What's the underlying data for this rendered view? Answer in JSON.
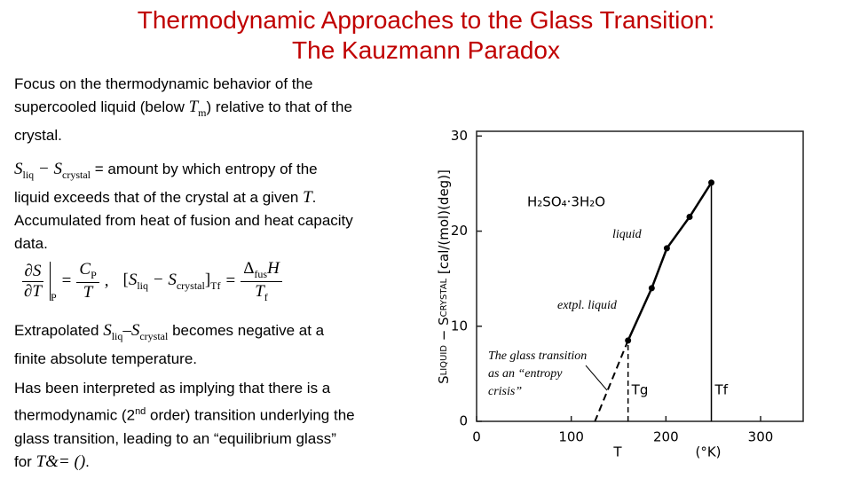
{
  "header": {
    "title": [
      "Thermodynamic Approaches to the Glass Transition:",
      "The Kauzmann Paradox"
    ]
  },
  "paragraphs": [
    [
      "Focus on the thermodynamic behavior of the supercooled liquid (below ",
      "T",
      "m",
      ") relative to that of the crystal."
    ],
    [
      "S",
      "liq",
      " − S",
      "crystal",
      " = amount by which entropy of the liquid exceeds that of the crystal at a given ",
      "T",
      ".  Accumulated from heat of fusion and heat capacity data."
    ],
    [
      "Extrapolated ",
      "S",
      "liq",
      "–S",
      "crystal",
      " becomes negative at a finite absolute temperature."
    ],
    [
      "Has been interpreted as implying that there is a thermodynamic (2",
      "nd",
      " order) transition underlying the glass transition, leading to an “equilibrium glass” for ",
      "T",
      "&= ()",
      "."
    ]
  ],
  "equation": {
    "lhs_num": "∂S",
    "lhs_den": "∂T",
    "lhs_sub": "P",
    "rhs_num": "C",
    "rhs_num_sub": "P",
    "rhs_den": "T",
    "sep": ",",
    "bracket": [
      "[",
      "S",
      "liq",
      " − S",
      "crystal",
      "]"
    ],
    "bracket_sub": "Tf",
    "eq": "=",
    "frac_num": [
      "Δ",
      "fus",
      "H"
    ],
    "frac_den": [
      "T",
      "f"
    ]
  },
  "figure": {
    "type": "line",
    "compound": "H₂SO₄·3H₂O",
    "y_label": [
      "S",
      "LIQUID",
      " − S",
      "CRYSTAL",
      "  [cal/(mol)(deg)]"
    ],
    "x_label": "T",
    "x_unit": "(°K)",
    "xlim": [
      0,
      345
    ],
    "ylim": [
      0,
      30.5
    ],
    "xticks": [
      0,
      100,
      200,
      300
    ],
    "yticks": [
      0,
      10,
      20,
      30
    ],
    "series": [
      {
        "name": "liquid",
        "color": "#000000",
        "x": [
          160,
          185,
          201,
          225,
          248
        ],
        "values": [
          8.5,
          14,
          18.2,
          21.5,
          25.1
        ]
      }
    ],
    "extrapolation": {
      "name": "extpl. liquid",
      "x": [
        160,
        125
      ],
      "values": [
        8.5,
        0
      ]
    },
    "markers": [
      {
        "label": "Tg",
        "x": 160,
        "dashed": true
      },
      {
        "label": "Tf",
        "x": 248,
        "dashed": false
      }
    ],
    "annotation": [
      "The glass transition",
      "as an “entropy",
      "crisis”"
    ]
  }
}
